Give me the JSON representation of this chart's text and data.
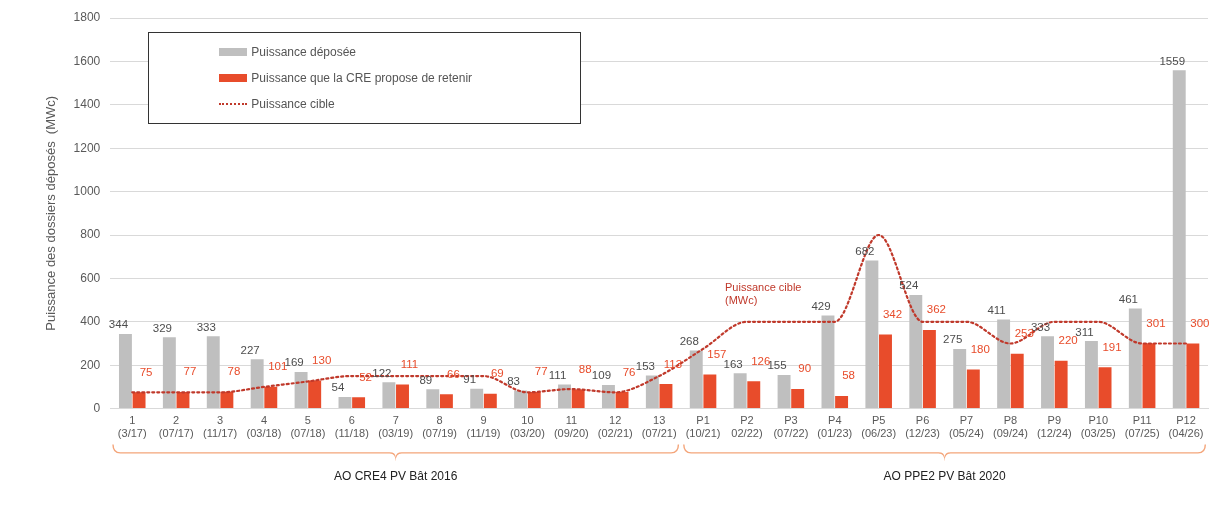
{
  "chart_data": {
    "type": "bar",
    "ylabel": "Puissance des dossiers déposés  (MWc)",
    "categories": [
      "1\n(3/17)",
      "2\n(07/17)",
      "3\n(11/17)",
      "4\n(03/18)",
      "5\n(07/18)",
      "6\n(11/18)",
      "7\n(03/19)",
      "8\n(07/19)",
      "9\n(11/19)",
      "10\n(03/20)",
      "11\n(09/20)",
      "12\n(02/21)",
      "13\n(07/21)",
      "P1\n(10/21)",
      "P2\n02/22)",
      "P3\n(07/22)",
      "P4\n(01/23)",
      "P5\n(06/23)",
      "P6\n(12/23)",
      "P7\n(05/24)",
      "P8\n(09/24)",
      "P9\n(12/24)",
      "P10\n(03/25)",
      "P11\n(07/25)",
      "P12\n(04/26)"
    ],
    "series": [
      {
        "name": "Puissance déposée",
        "color": "#bfbfbf",
        "values": [
          344,
          329,
          333,
          227,
          169,
          54,
          122,
          89,
          91,
          83,
          111,
          109,
          153,
          268,
          163,
          155,
          429,
          682,
          524,
          275,
          411,
          333,
          311,
          461,
          1559
        ],
        "value_labels": [
          "344",
          "329",
          "333",
          "227",
          "169",
          "54",
          "122",
          "89",
          "91",
          "83",
          "111",
          "109",
          "153",
          "268",
          "163",
          "155",
          "429",
          "682",
          "524",
          "275",
          "411",
          "333",
          "311",
          "461",
          "1559"
        ]
      },
      {
        "name": "Puissance que la CRE propose de retenir",
        "color": "#e84c2b",
        "values": [
          75,
          77,
          78,
          101,
          130,
          52,
          111,
          66,
          69,
          77,
          88,
          76,
          113,
          157,
          126,
          90,
          58,
          342,
          362,
          180,
          253,
          220,
          191,
          301,
          300
        ],
        "value_labels": [
          "75",
          "77",
          "78",
          "101",
          "130",
          "52",
          "111",
          "66",
          "69",
          "77",
          "88",
          "76",
          "113",
          "157",
          "126",
          "90",
          "58",
          "342",
          "362",
          "180",
          "253",
          "220",
          "191",
          "301",
          "300"
        ]
      },
      {
        "name": "Puissance cible",
        "type": "line",
        "color": "#c0392b",
        "line_style": "dotted",
        "marker": "none",
        "values": [
          75,
          75,
          75,
          100,
          125,
          150,
          150,
          150,
          150,
          75,
          90,
          75,
          150,
          275,
          400,
          400,
          400,
          800,
          400,
          400,
          300,
          400,
          400,
          300,
          300
        ]
      }
    ],
    "ylim": [
      0,
      1800
    ],
    "yticks": [
      0,
      200,
      400,
      600,
      800,
      1000,
      1200,
      1400,
      1600,
      1800
    ],
    "grid": "y",
    "legend": "top left",
    "annotations": [
      "Puissance cible\n(MWc)",
      "AO CRE4 PV Bât 2016",
      "AO PPE2 PV Bât 2020"
    ]
  }
}
